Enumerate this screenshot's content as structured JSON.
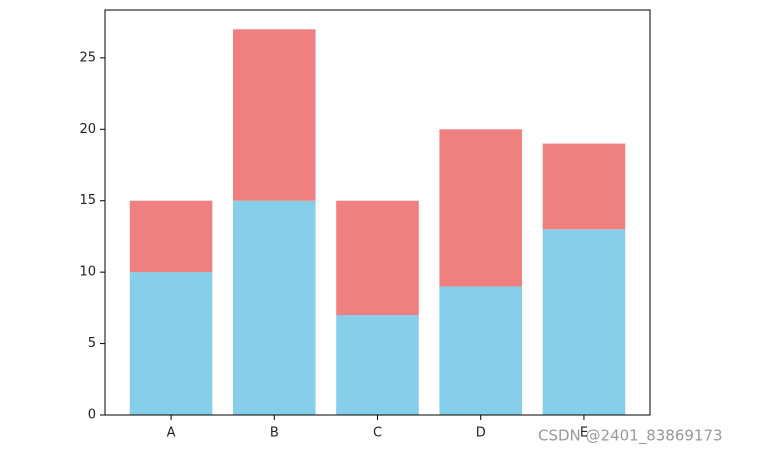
{
  "chart_data": {
    "type": "stacked_bar",
    "categories": [
      "A",
      "B",
      "C",
      "D",
      "E"
    ],
    "series": [
      {
        "color": "#87ceeb",
        "values": [
          10,
          15,
          7,
          9,
          13
        ]
      },
      {
        "color": "#f08080",
        "values": [
          5,
          12,
          8,
          11,
          6
        ]
      }
    ],
    "ylim": [
      0,
      28.35
    ],
    "yticks": [
      0,
      5,
      10,
      15,
      20,
      25
    ],
    "watermark": "CSDN @2401_83869173"
  }
}
